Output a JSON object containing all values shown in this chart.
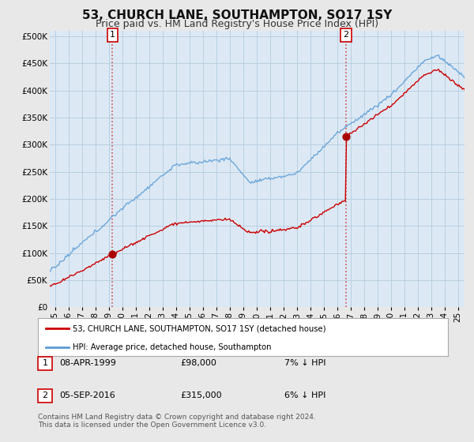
{
  "title": "53, CHURCH LANE, SOUTHAMPTON, SO17 1SY",
  "subtitle": "Price paid vs. HM Land Registry's House Price Index (HPI)",
  "ylabel_ticks": [
    "£0",
    "£50K",
    "£100K",
    "£150K",
    "£200K",
    "£250K",
    "£300K",
    "£350K",
    "£400K",
    "£450K",
    "£500K"
  ],
  "ytick_values": [
    0,
    50000,
    100000,
    150000,
    200000,
    250000,
    300000,
    350000,
    400000,
    450000,
    500000
  ],
  "ylim": [
    0,
    510000
  ],
  "xlim_start": 1994.6,
  "xlim_end": 2025.5,
  "background_color": "#e8e8e8",
  "plot_bg_color": "#dce9f5",
  "grid_color": "#b8cfe0",
  "sale1_year": 1999.27,
  "sale1_price": 98000,
  "sale2_year": 2016.67,
  "sale2_price": 315000,
  "legend_line1": "53, CHURCH LANE, SOUTHAMPTON, SO17 1SY (detached house)",
  "legend_line2": "HPI: Average price, detached house, Southampton",
  "annotation1_label": "1",
  "annotation1_date": "08-APR-1999",
  "annotation1_price": "£98,000",
  "annotation1_info": "7% ↓ HPI",
  "annotation2_label": "2",
  "annotation2_date": "05-SEP-2016",
  "annotation2_price": "£315,000",
  "annotation2_info": "6% ↓ HPI",
  "footer": "Contains HM Land Registry data © Crown copyright and database right 2024.\nThis data is licensed under the Open Government Licence v3.0.",
  "hpi_color": "#5b9bd5",
  "price_color": "#cc0000",
  "sale_marker_color": "#aa0000",
  "vline_color": "#cc3333",
  "title_fontsize": 11,
  "subtitle_fontsize": 9
}
